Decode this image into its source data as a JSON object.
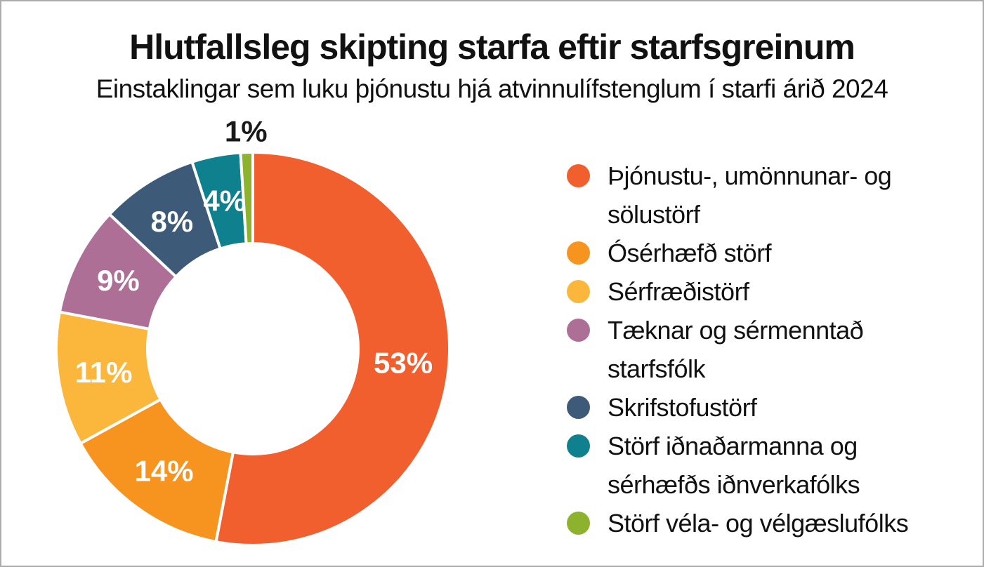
{
  "title": "Hlutfallsleg skipting starfa eftir starfsgreinum",
  "subtitle": "Einstaklingar sem luku þjónustu hjá atvinnulífstenglum í starfi árið 2024",
  "chart_data": {
    "type": "pie",
    "subtype": "donut",
    "unit": "%",
    "start_angle_deg": 0,
    "direction": "clockwise",
    "legend_position": "right",
    "label_style": "percent labels inside slices, smallest slice labeled outside top",
    "segments": [
      {
        "label": "Þjónustu-, umönnunar- og sölustörf",
        "value": 53,
        "display": "53%",
        "color": "#F15F2E"
      },
      {
        "label": "Ósérhæfð störf",
        "value": 14,
        "display": "14%",
        "color": "#F79420"
      },
      {
        "label": "Sérfræðistörf",
        "value": 11,
        "display": "11%",
        "color": "#FBB73C"
      },
      {
        "label": "Tæknar og sérmenntað starfsfólk",
        "value": 9,
        "display": "9%",
        "color": "#AD6F96"
      },
      {
        "label": "Skrifstofustörf",
        "value": 8,
        "display": "8%",
        "color": "#3D5A78"
      },
      {
        "label": "Störf iðnaðarmanna og sérhæfðs iðnverkafólks",
        "value": 4,
        "display": "4%",
        "color": "#0F808D"
      },
      {
        "label": "Störf véla- og vélgæslufólks",
        "value": 1,
        "display": "1%",
        "color": "#8DB22E"
      }
    ]
  },
  "colors": {
    "background": "#FFFFFF",
    "frame_border": "#ACACAC",
    "label_inside": "#FFFFFF",
    "label_outside": "#1A1A1A",
    "text": "#111111"
  }
}
